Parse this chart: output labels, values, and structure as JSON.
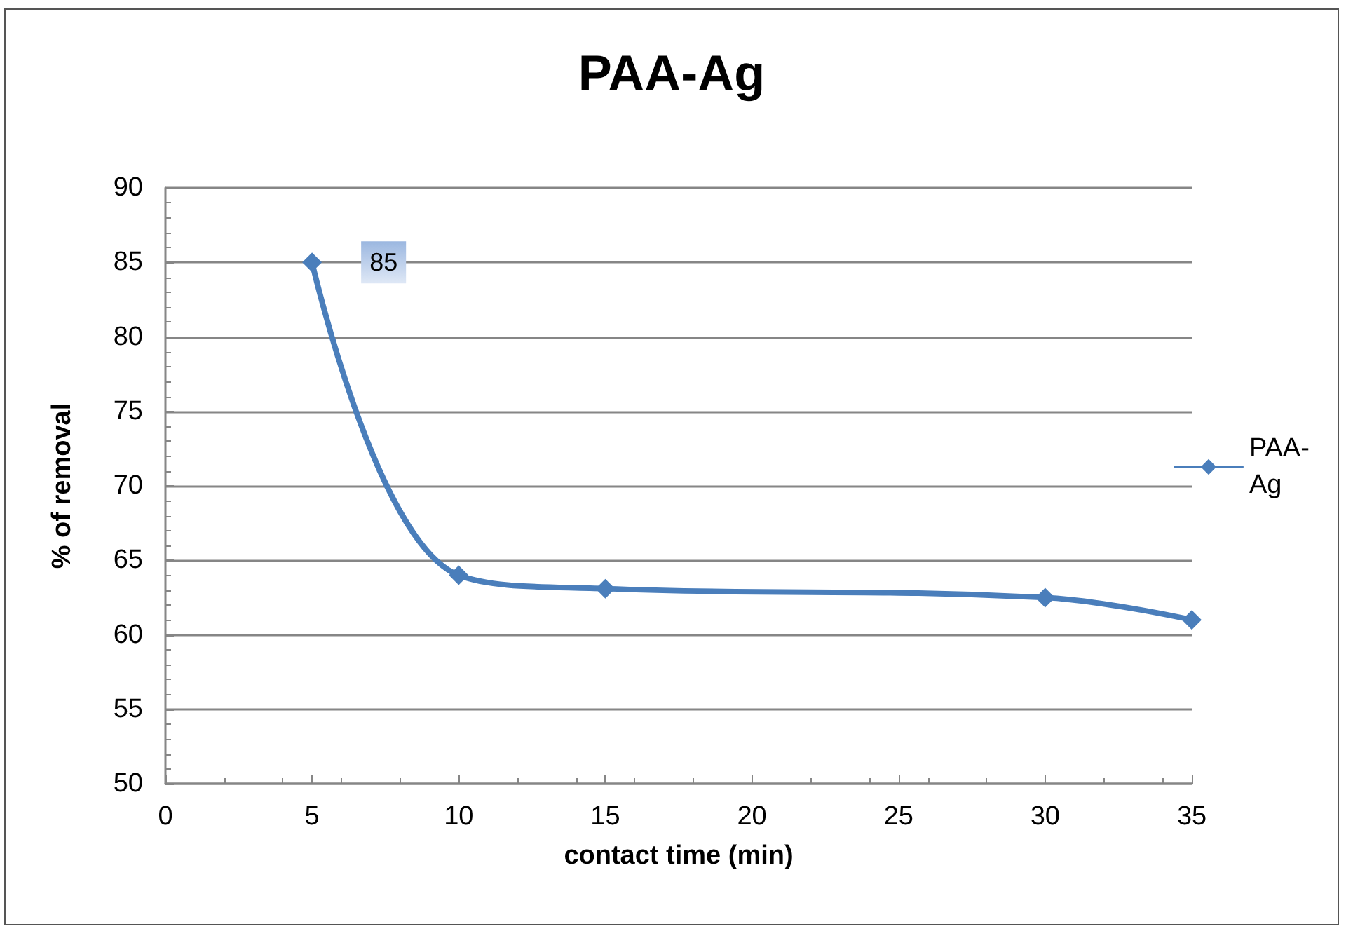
{
  "chart_data": {
    "type": "line",
    "title": "PAA-Ag",
    "xlabel": "contact time (min)",
    "ylabel": "% of removal",
    "x": [
      5,
      10,
      15,
      30,
      35
    ],
    "series": [
      {
        "name": "PAA-Ag",
        "color": "#4a7ebb",
        "values": [
          85,
          64,
          63.1,
          62.5,
          61.0
        ],
        "value_labels": [
          "85",
          null,
          null,
          null,
          null
        ]
      }
    ],
    "xlim": [
      0,
      35
    ],
    "xticks": [
      0,
      5,
      10,
      15,
      20,
      25,
      30,
      35
    ],
    "ylim": [
      50,
      90
    ],
    "yticks": [
      50,
      55,
      60,
      65,
      70,
      75,
      80,
      85,
      90
    ],
    "grid": "y",
    "legend": "right",
    "marker": "diamond",
    "line_style": "solid"
  }
}
